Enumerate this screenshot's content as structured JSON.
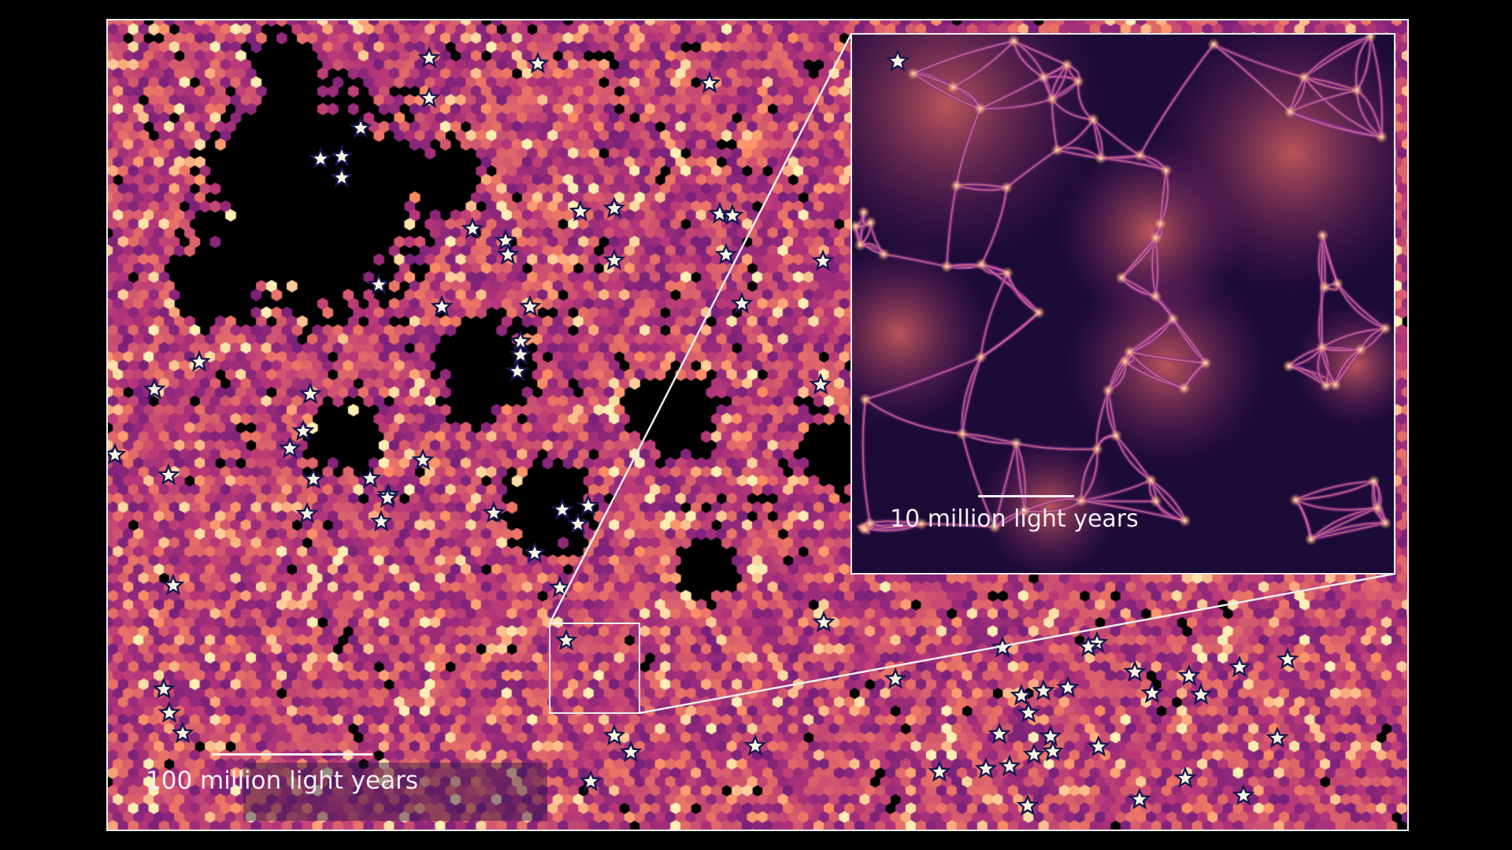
{
  "main_map": {
    "scale_label": "100 million light years",
    "colormap": "magma",
    "marker": "star",
    "marker_fill": "#f8f6e0",
    "marker_edge": "#1a1850"
  },
  "inset": {
    "scale_label": "10 million light years",
    "colormap": "magma"
  },
  "frame_color": "#eeeeee",
  "background": "#000000"
}
